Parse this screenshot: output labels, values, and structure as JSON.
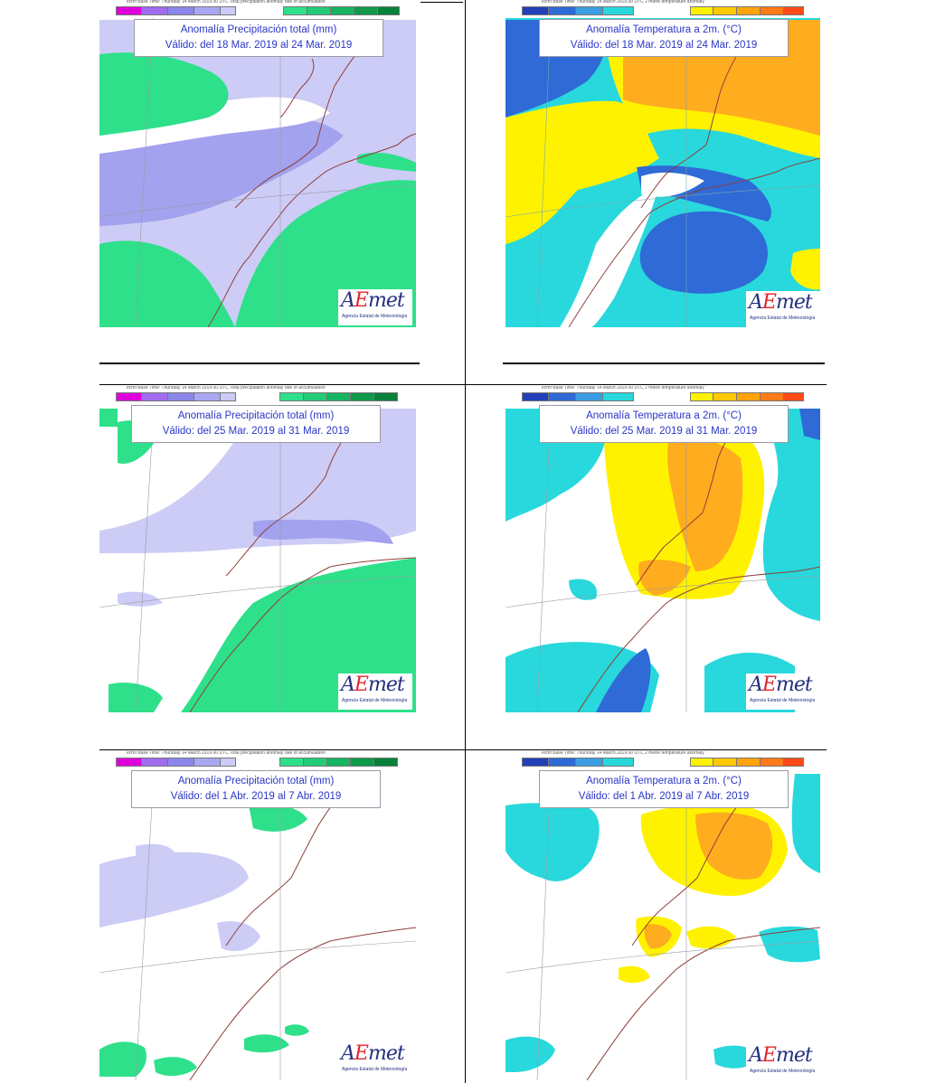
{
  "colors": {
    "precip_dry": [
      "#e000dc",
      "#a06cf0",
      "#8c86ec",
      "#a8a8f2",
      "#cbcbf6"
    ],
    "precip_wet": [
      "#2ee08a",
      "#22cc76",
      "#16b460",
      "#0e9a48",
      "#08813a"
    ],
    "temp_cold": [
      "#2340b8",
      "#2f6ad6",
      "#3c9ee2",
      "#28d8dc"
    ],
    "temp_warm": [
      "#fff100",
      "#ffc800",
      "#ffa30a",
      "#ff7a18",
      "#ff4a18"
    ],
    "precip_light": "#ccccf6",
    "precip_mid": "#a2a2ee",
    "green": "#2ee08a",
    "cyan": "#28d8dc",
    "blue": "#2f6ad6",
    "yellow": "#fff200",
    "orange": "#ffac1e",
    "coast": "#8e3f3a",
    "accent_title": "#2a36c6"
  },
  "panels": [
    {
      "id": "precip-week1",
      "header": "ecmf Base Time: Thursday 14 March 2019 00 UTC Total precipitation anomaly rate of accumulation",
      "title_line1": "Anomalía Precipitación total (mm)",
      "title_line2": "Válido: del 18 Mar. 2019 al 24 Mar. 2019",
      "logo": "AEmet",
      "logo_sub": "Agencia Estatal de Meteorología"
    },
    {
      "id": "temp-week1",
      "header": "ecmf Base Time: Thursday 14 March 2019 00 UTC 2 metre temperature anomaly",
      "title_line1": "Anomalía Temperatura a 2m. (°C)",
      "title_line2": "Válido: del 18 Mar. 2019 al 24 Mar. 2019",
      "logo": "AEmet",
      "logo_sub": "Agencia Estatal de Meteorología"
    },
    {
      "id": "precip-week2",
      "header": "ecmf Base Time: Thursday 14 March 2019 00 UTC Total precipitation anomaly rate of accumulation",
      "title_line1": "Anomalía Precipitación total (mm)",
      "title_line2": "Válido: del 25 Mar. 2019 al 31 Mar. 2019",
      "logo": "AEmet",
      "logo_sub": "Agencia Estatal de Meteorología"
    },
    {
      "id": "temp-week2",
      "header": "ecmf Base Time: Thursday 14 March 2019 00 UTC 2 metre temperature anomaly",
      "title_line1": "Anomalía Temperatura a 2m. (°C)",
      "title_line2": "Válido: del 25 Mar. 2019 al 31 Mar. 2019",
      "logo": "AEmet",
      "logo_sub": "Agencia Estatal de Meteorología"
    },
    {
      "id": "precip-week3",
      "header": "ecmf Base Time: Thursday 14 March 2019 00 UTC Total precipitation anomaly rate of accumulation",
      "title_line1": "Anomalía Precipitación total (mm)",
      "title_line2": "Válido: del 1 Abr. 2019 al 7 Abr. 2019",
      "logo": "AEmet",
      "logo_sub": "Agencia Estatal de Meteorología"
    },
    {
      "id": "temp-week3",
      "header": "ecmf Base Time: Thursday 14 March 2019 00 UTC 2 metre temperature anomaly",
      "title_line1": "Anomalía Temperatura a 2m. (°C)",
      "title_line2": "Válido: del 1 Abr. 2019 al 7 Abr. 2019",
      "logo": "AEmet",
      "logo_sub": "Agencia Estatal de Meteorología"
    }
  ]
}
